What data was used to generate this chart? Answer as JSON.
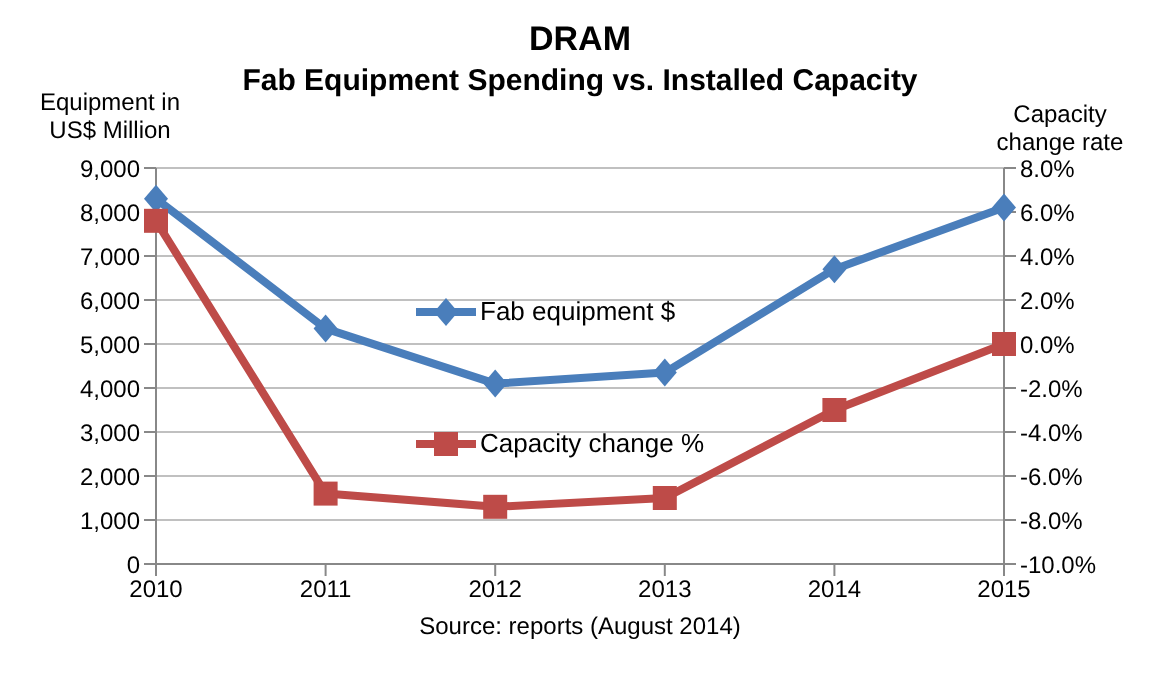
{
  "chart_data": {
    "type": "line",
    "title": "DRAM",
    "subtitle": "Fab Equipment Spending vs. Installed Capacity",
    "ylabel": "Equipment in US$ Million",
    "y2label": "Capacity change rate",
    "categories": [
      "2010",
      "2011",
      "2012",
      "2013",
      "2014",
      "2015"
    ],
    "series": [
      {
        "name": "Fab equipment $",
        "color": "#4a7ebb",
        "marker": "diamond",
        "values": [
          8300,
          5350,
          4100,
          4350,
          6700,
          8100
        ]
      },
      {
        "name": "Capacity change %",
        "color": "#be4b48",
        "marker": "square",
        "axis": "y2",
        "values": [
          5.6,
          -6.8,
          -7.4,
          -7.0,
          -3.0,
          0.0
        ]
      }
    ],
    "ylim": [
      0,
      9000
    ],
    "yticks": [
      {
        "value": 0,
        "label": "0"
      },
      {
        "value": 1000,
        "label": "1,000"
      },
      {
        "value": 2000,
        "label": "2,000"
      },
      {
        "value": 3000,
        "label": "3,000"
      },
      {
        "value": 4000,
        "label": "4,000"
      },
      {
        "value": 5000,
        "label": "5,000"
      },
      {
        "value": 6000,
        "label": "6,000"
      },
      {
        "value": 7000,
        "label": "7,000"
      },
      {
        "value": 8000,
        "label": "8,000"
      },
      {
        "value": 9000,
        "label": "9,000"
      }
    ],
    "y2lim": [
      -10,
      8
    ],
    "y2ticks": [
      {
        "value": -10,
        "label": "-10.0%"
      },
      {
        "value": -8,
        "label": "-8.0%"
      },
      {
        "value": -6,
        "label": "-6.0%"
      },
      {
        "value": -4,
        "label": "-4.0%"
      },
      {
        "value": -2,
        "label": "-2.0%"
      },
      {
        "value": 0,
        "label": "0.0%"
      },
      {
        "value": 2,
        "label": "2.0%"
      },
      {
        "value": 4,
        "label": "4.0%"
      },
      {
        "value": 6,
        "label": "6.0%"
      },
      {
        "value": 8,
        "label": "8.0%"
      }
    ],
    "grid": "y",
    "legend": "center",
    "annotations": [
      "Source: reports (August 2014)"
    ]
  }
}
